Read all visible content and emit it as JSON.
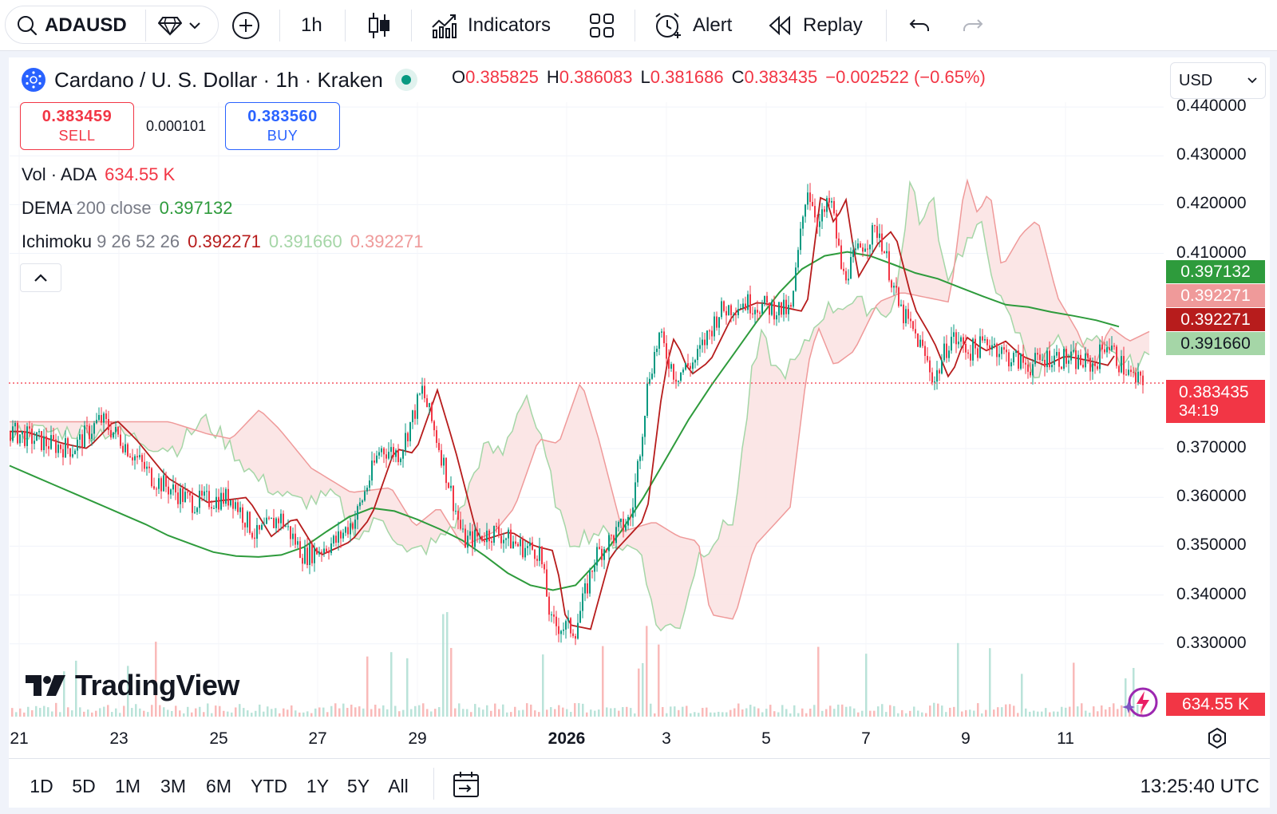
{
  "toolbar": {
    "symbol": "ADAUSD",
    "interval": "1h",
    "indicators_label": "Indicators",
    "alert_label": "Alert",
    "replay_label": "Replay"
  },
  "legend": {
    "title": "Cardano / U. S. Dollar · 1h · Kraken",
    "open_key": "O",
    "open": "0.385825",
    "high_key": "H",
    "high": "0.386083",
    "low_key": "L",
    "low": "0.381686",
    "close_key": "C",
    "close": "0.383435",
    "change": "−0.002522 (−0.65%)"
  },
  "trade": {
    "sell_price": "0.383459",
    "sell_label": "SELL",
    "spread": "0.000101",
    "buy_price": "0.383560",
    "buy_label": "BUY"
  },
  "indicators": {
    "vol_label": "Vol · ADA",
    "vol_value": "634.55 K",
    "dema_name": "DEMA",
    "dema_params": "200 close",
    "dema_value": "0.397132",
    "ichimoku_name": "Ichimoku",
    "ichimoku_params": "9 26 52 26",
    "ichi_v1": "0.392271",
    "ichi_v2": "0.391660",
    "ichi_v3": "0.392271"
  },
  "currency": "USD",
  "colors": {
    "up": "#22ab94",
    "down": "#f23645",
    "dema": "#2e9b3c",
    "conversion": "#b71c1c",
    "span_a": "#a5d6a7",
    "span_b": "#ef9a9a",
    "accent": "#2962ff"
  },
  "chart_data": {
    "type": "candlestick",
    "y_ticks": [
      "0.440000",
      "0.430000",
      "0.420000",
      "0.410000",
      "0.370000",
      "0.360000",
      "0.350000",
      "0.340000",
      "0.330000"
    ],
    "ylim": [
      0.3275,
      0.441
    ],
    "x_ticks": [
      "21",
      "23",
      "25",
      "27",
      "29",
      "2026",
      "3",
      "5",
      "7",
      "9",
      "11"
    ],
    "last_price": 0.383435,
    "series": [
      {
        "name": "DEMA 200 close",
        "values": [
          0.3665,
          0.3645,
          0.3625,
          0.3605,
          0.3585,
          0.3565,
          0.3545,
          0.3522,
          0.3505,
          0.3488,
          0.348,
          0.3478,
          0.3482,
          0.3498,
          0.353,
          0.356,
          0.3578,
          0.3572,
          0.3555,
          0.3535,
          0.3512,
          0.348,
          0.3445,
          0.342,
          0.341,
          0.342,
          0.347,
          0.353,
          0.36,
          0.368,
          0.376,
          0.383,
          0.3895,
          0.396,
          0.402,
          0.4068,
          0.4095,
          0.4103,
          0.4095,
          0.4078,
          0.406,
          0.4048,
          0.403,
          0.4012,
          0.3995,
          0.399,
          0.398,
          0.3972,
          0.3963,
          0.395
        ]
      }
    ]
  },
  "price_tags": {
    "dema": "0.397132",
    "span_b": "0.392271",
    "conversion": "0.392271",
    "span_a": "0.391660",
    "last": "0.383435",
    "countdown": "34:19",
    "volume": "634.55 K"
  },
  "branding": "TradingView",
  "bottom": {
    "ranges": [
      "1D",
      "5D",
      "1M",
      "3M",
      "6M",
      "YTD",
      "1Y",
      "5Y",
      "All"
    ],
    "clock": "13:25:40 UTC"
  }
}
